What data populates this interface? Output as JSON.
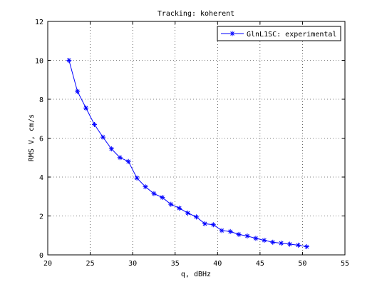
{
  "chart_data": {
    "type": "line",
    "title": "Tracking: koherent",
    "xlabel": "q, dBHz",
    "ylabel": "RMS V, cm/s",
    "xlim": [
      20,
      55
    ],
    "ylim": [
      0,
      12
    ],
    "x_ticks": [
      20,
      25,
      30,
      35,
      40,
      45,
      50,
      55
    ],
    "y_ticks": [
      0,
      2,
      4,
      6,
      8,
      10,
      12
    ],
    "grid": true,
    "legend_position": "top-right",
    "series": [
      {
        "name": "GlnL1SC: experimental",
        "color": "#0000ff",
        "marker": "asterisk",
        "x": [
          22.5,
          23.5,
          24.5,
          25.5,
          26.5,
          27.5,
          28.5,
          29.5,
          30.5,
          31.5,
          32.5,
          33.5,
          34.5,
          35.5,
          36.5,
          37.5,
          38.5,
          39.5,
          40.5,
          41.5,
          42.5,
          43.5,
          44.5,
          45.5,
          46.5,
          47.5,
          48.5,
          49.5,
          50.5
        ],
        "y": [
          10.0,
          8.4,
          7.55,
          6.7,
          6.05,
          5.45,
          5.0,
          4.8,
          3.95,
          3.5,
          3.15,
          2.95,
          2.6,
          2.4,
          2.15,
          1.95,
          1.6,
          1.55,
          1.25,
          1.2,
          1.05,
          0.97,
          0.85,
          0.75,
          0.65,
          0.6,
          0.55,
          0.5,
          0.42
        ]
      }
    ]
  }
}
